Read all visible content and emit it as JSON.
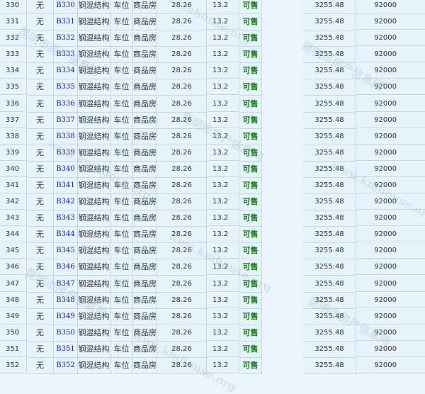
{
  "table": {
    "rows": [
      {
        "no": "330",
        "c1": "无",
        "unit": "B330",
        "structure": "钢混结构",
        "use": "车位",
        "type": "商品房",
        "area": "28.26",
        "inner": "13.2",
        "status": "可售",
        "price": "3255.48",
        "total": "92000"
      },
      {
        "no": "331",
        "c1": "无",
        "unit": "B331",
        "structure": "钢混结构",
        "use": "车位",
        "type": "商品房",
        "area": "28.26",
        "inner": "13.2",
        "status": "可售",
        "price": "3255.48",
        "total": "92000"
      },
      {
        "no": "332",
        "c1": "无",
        "unit": "B332",
        "structure": "钢混结构",
        "use": "车位",
        "type": "商品房",
        "area": "28.26",
        "inner": "13.2",
        "status": "可售",
        "price": "3255.48",
        "total": "92000"
      },
      {
        "no": "333",
        "c1": "无",
        "unit": "B333",
        "structure": "钢混结构",
        "use": "车位",
        "type": "商品房",
        "area": "28.26",
        "inner": "13.2",
        "status": "可售",
        "price": "3255.48",
        "total": "92000"
      },
      {
        "no": "334",
        "c1": "无",
        "unit": "B334",
        "structure": "钢混结构",
        "use": "车位",
        "type": "商品房",
        "area": "28.26",
        "inner": "13.2",
        "status": "可售",
        "price": "3255.48",
        "total": "92000"
      },
      {
        "no": "335",
        "c1": "无",
        "unit": "B335",
        "structure": "钢混结构",
        "use": "车位",
        "type": "商品房",
        "area": "28.26",
        "inner": "13.2",
        "status": "可售",
        "price": "3255.48",
        "total": "92000"
      },
      {
        "no": "336",
        "c1": "无",
        "unit": "B336",
        "structure": "钢混结构",
        "use": "车位",
        "type": "商品房",
        "area": "28.26",
        "inner": "13.2",
        "status": "可售",
        "price": "3255.48",
        "total": "92000"
      },
      {
        "no": "337",
        "c1": "无",
        "unit": "B337",
        "structure": "钢混结构",
        "use": "车位",
        "type": "商品房",
        "area": "28.26",
        "inner": "13.2",
        "status": "可售",
        "price": "3255.48",
        "total": "92000"
      },
      {
        "no": "338",
        "c1": "无",
        "unit": "B338",
        "structure": "钢混结构",
        "use": "车位",
        "type": "商品房",
        "area": "28.26",
        "inner": "13.2",
        "status": "可售",
        "price": "3255.48",
        "total": "92000"
      },
      {
        "no": "339",
        "c1": "无",
        "unit": "B339",
        "structure": "钢混结构",
        "use": "车位",
        "type": "商品房",
        "area": "28.26",
        "inner": "13.2",
        "status": "可售",
        "price": "3255.48",
        "total": "92000"
      },
      {
        "no": "340",
        "c1": "无",
        "unit": "B340",
        "structure": "钢混结构",
        "use": "车位",
        "type": "商品房",
        "area": "28.26",
        "inner": "13.2",
        "status": "可售",
        "price": "3255.48",
        "total": "92000"
      },
      {
        "no": "341",
        "c1": "无",
        "unit": "B341",
        "structure": "钢混结构",
        "use": "车位",
        "type": "商品房",
        "area": "28.26",
        "inner": "13.2",
        "status": "可售",
        "price": "3255.48",
        "total": "92000"
      },
      {
        "no": "342",
        "c1": "无",
        "unit": "B342",
        "structure": "钢混结构",
        "use": "车位",
        "type": "商品房",
        "area": "28.26",
        "inner": "13.2",
        "status": "可售",
        "price": "3255.48",
        "total": "92000"
      },
      {
        "no": "343",
        "c1": "无",
        "unit": "B343",
        "structure": "钢混结构",
        "use": "车位",
        "type": "商品房",
        "area": "28.26",
        "inner": "13.2",
        "status": "可售",
        "price": "3255.48",
        "total": "92000"
      },
      {
        "no": "344",
        "c1": "无",
        "unit": "B344",
        "structure": "钢混结构",
        "use": "车位",
        "type": "商品房",
        "area": "28.26",
        "inner": "13.2",
        "status": "可售",
        "price": "3255.48",
        "total": "92000"
      },
      {
        "no": "345",
        "c1": "无",
        "unit": "B345",
        "structure": "钢混结构",
        "use": "车位",
        "type": "商品房",
        "area": "28.26",
        "inner": "13.2",
        "status": "可售",
        "price": "3255.48",
        "total": "92000"
      },
      {
        "no": "346",
        "c1": "无",
        "unit": "B346",
        "structure": "钢混结构",
        "use": "车位",
        "type": "商品房",
        "area": "28.26",
        "inner": "13.2",
        "status": "可售",
        "price": "3255.48",
        "total": "92000"
      },
      {
        "no": "347",
        "c1": "无",
        "unit": "B347",
        "structure": "钢混结构",
        "use": "车位",
        "type": "商品房",
        "area": "28.26",
        "inner": "13.2",
        "status": "可售",
        "price": "3255.48",
        "total": "92000"
      },
      {
        "no": "348",
        "c1": "无",
        "unit": "B348",
        "structure": "钢混结构",
        "use": "车位",
        "type": "商品房",
        "area": "28.26",
        "inner": "13.2",
        "status": "可售",
        "price": "3255.48",
        "total": "92000"
      },
      {
        "no": "349",
        "c1": "无",
        "unit": "B349",
        "structure": "钢混结构",
        "use": "车位",
        "type": "商品房",
        "area": "28.26",
        "inner": "13.2",
        "status": "可售",
        "price": "3255.48",
        "total": "92000"
      },
      {
        "no": "350",
        "c1": "无",
        "unit": "B350",
        "structure": "钢混结构",
        "use": "车位",
        "type": "商品房",
        "area": "28.26",
        "inner": "13.2",
        "status": "可售",
        "price": "3255.48",
        "total": "92000"
      },
      {
        "no": "351",
        "c1": "无",
        "unit": "B351",
        "structure": "钢混结构",
        "use": "车位",
        "type": "商品房",
        "area": "28.26",
        "inner": "13.2",
        "status": "可售",
        "price": "3255.48",
        "total": "92000"
      },
      {
        "no": "352",
        "c1": "无",
        "unit": "B352",
        "structure": "钢混结构",
        "use": "车位",
        "type": "商品房",
        "area": "28.26",
        "inner": "13.2",
        "status": "可售",
        "price": "3255.48",
        "total": "92000"
      }
    ]
  },
  "watermark": {
    "text": "昆明市房产信息网",
    "url": "www.kmhouse.org"
  },
  "colors": {
    "unit_link": "#1a1aa8",
    "status_available": "#167a16",
    "background": "#eaf5fc",
    "border": "#c3d6e4"
  }
}
